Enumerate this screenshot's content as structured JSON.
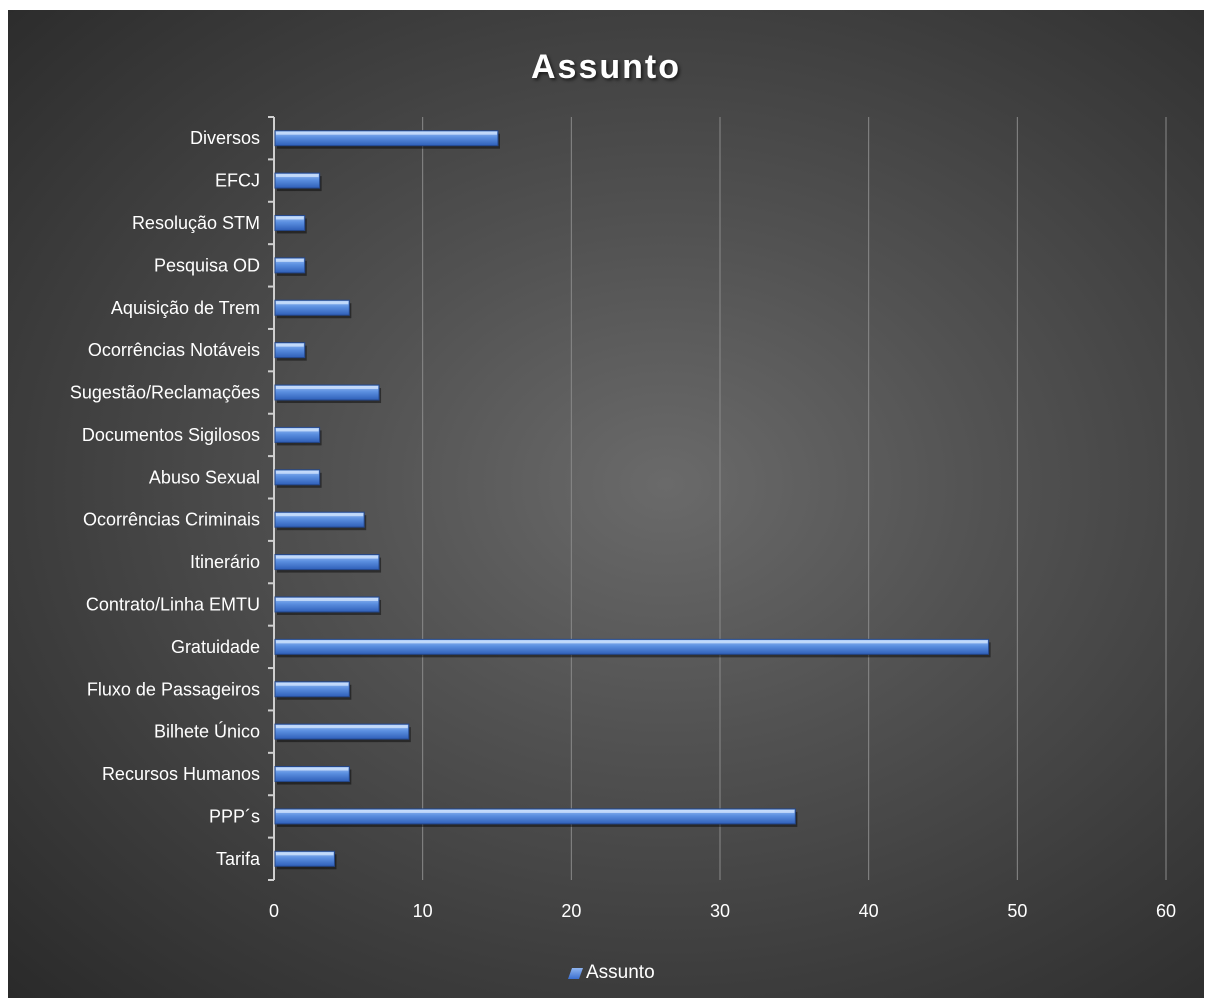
{
  "chart_data": {
    "type": "bar",
    "orientation": "horizontal",
    "title": "Assunto",
    "categories": [
      "Diversos",
      "EFCJ",
      "Resolução STM",
      "Pesquisa OD",
      "Aquisição de Trem",
      "Ocorrências Notáveis",
      "Sugestão/Reclamações",
      "Documentos Sigilosos",
      "Abuso Sexual",
      "Ocorrências Criminais",
      "Itinerário",
      "Contrato/Linha EMTU",
      "Gratuidade",
      "Fluxo de Passageiros",
      "Bilhete Único",
      "Recursos Humanos",
      "PPP´s",
      "Tarifa"
    ],
    "series": [
      {
        "name": "Assunto",
        "values": [
          15,
          3,
          2,
          2,
          5,
          2,
          7,
          3,
          3,
          6,
          7,
          7,
          48,
          5,
          9,
          5,
          35,
          4
        ]
      }
    ],
    "xlim": [
      0,
      60
    ],
    "xticks": [
      0,
      10,
      20,
      30,
      40,
      50,
      60
    ],
    "grid": true,
    "legend_position": "bottom",
    "colors": {
      "bar_light": "#9cc0f5",
      "bar_mid": "#5b8fe0",
      "bar_dark": "#2f5fb8"
    }
  }
}
